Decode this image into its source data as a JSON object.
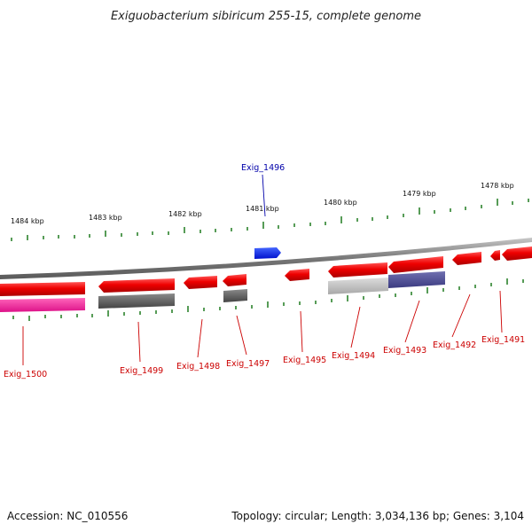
{
  "title": "Exiguobacterium sibiricum 255-15, complete genome",
  "footer": {
    "accession": "Accession: NC_010556",
    "topology": "Topology: circular; Length: 3,034,136 bp; Genes: 3,104"
  },
  "colors": {
    "forward_gene": "#ee0000",
    "highlight_gene": "#0022ee",
    "backbone": "#8a8a8a",
    "tick": "#1f7a1f",
    "label_red": "#cc0000",
    "label_blue": "#0000aa"
  },
  "ticks": {
    "labels": [
      "1484 kbp",
      "1483 kbp",
      "1482 kbp",
      "1481 kbp",
      "1480 kbp",
      "1479 kbp",
      "1478 kbp"
    ]
  },
  "genes": {
    "exig_1500": "Exig_1500",
    "exig_1499": "Exig_1499",
    "exig_1498": "Exig_1498",
    "exig_1497": "Exig_1497",
    "exig_1496": "Exig_1496",
    "exig_1495": "Exig_1495",
    "exig_1494": "Exig_1494",
    "exig_1493": "Exig_1493",
    "exig_1492": "Exig_1492",
    "exig_1491": "Exig_1491"
  }
}
